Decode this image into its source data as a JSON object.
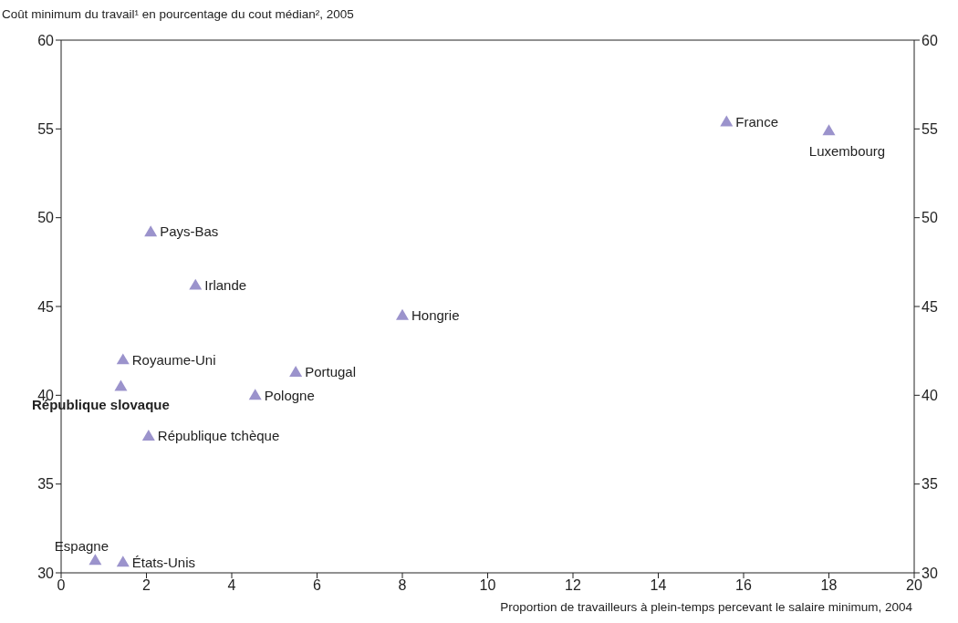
{
  "chart_data": {
    "type": "scatter",
    "ylabel": "Coût minimum du travail¹ en pourcentage du cout médian², 2005",
    "xlabel": "Proportion de travailleurs à plein-temps percevant le salaire minimum, 2004",
    "x": [
      15.6,
      18,
      2.1,
      3.15,
      8,
      1.45,
      5.5,
      1.4,
      4.55,
      2.05,
      0.8,
      1.45
    ],
    "series": [
      {
        "color": "#9b93cc",
        "values": [
          55.4,
          54.9,
          49.2,
          46.2,
          44.5,
          42.0,
          41.3,
          40.5,
          40.0,
          37.7,
          30.7,
          30.6
        ]
      }
    ],
    "marker": "triangle",
    "grid": false,
    "legend": false,
    "xlim": [
      0,
      20
    ],
    "xticks": [
      0,
      2,
      4,
      6,
      8,
      10,
      12,
      14,
      16,
      18,
      20
    ],
    "ylim": [
      30,
      60
    ],
    "yticks": [
      30,
      35,
      40,
      45,
      50,
      55,
      60
    ],
    "y2lim": [
      30,
      60
    ],
    "y2ticks": [
      30,
      35,
      40,
      45,
      50,
      55,
      60
    ],
    "annotations": [
      {
        "text": "France",
        "x": 15.6,
        "y": 55.4
      },
      {
        "text": "Luxembourg",
        "x": 18,
        "y": 54.9
      },
      {
        "text": "Pays-Bas",
        "x": 2.1,
        "y": 49.2
      },
      {
        "text": "Irlande",
        "x": 3.15,
        "y": 46.2
      },
      {
        "text": "Hongrie",
        "x": 8,
        "y": 44.5
      },
      {
        "text": "Royaume-Uni",
        "x": 1.45,
        "y": 42.0
      },
      {
        "text": "Portugal",
        "x": 5.5,
        "y": 41.3
      },
      {
        "text": "République slovaque",
        "x": 1.4,
        "y": 40.5
      },
      {
        "text": "Pologne",
        "x": 4.55,
        "y": 40.0
      },
      {
        "text": "République tchèque",
        "x": 2.05,
        "y": 37.7
      },
      {
        "text": "Espagne",
        "x": 0.8,
        "y": 30.7
      },
      {
        "text": "États-Unis",
        "x": 1.45,
        "y": 30.6
      }
    ]
  }
}
